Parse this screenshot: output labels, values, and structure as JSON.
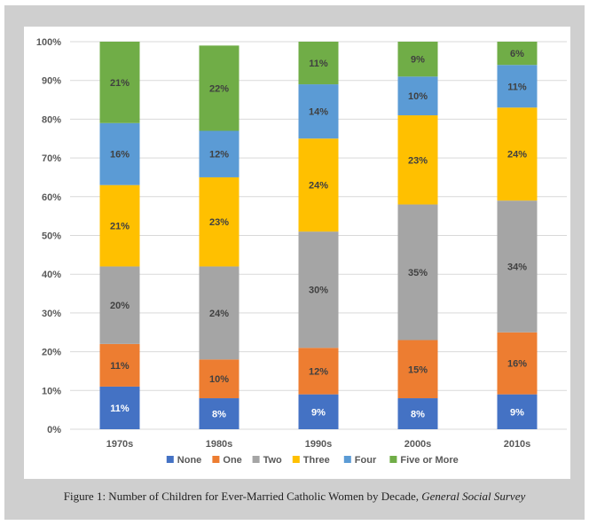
{
  "chart_data": {
    "type": "bar",
    "stacked": true,
    "categories": [
      "1970s",
      "1980s",
      "1990s",
      "2000s",
      "2010s"
    ],
    "series": [
      {
        "name": "None",
        "color": "#4472c4",
        "values": [
          11,
          8,
          9,
          8,
          9
        ],
        "labels": [
          "11%",
          "8%",
          "9%",
          "8%",
          "9%"
        ]
      },
      {
        "name": "One",
        "color": "#ed7d31",
        "values": [
          11,
          10,
          12,
          15,
          16
        ],
        "labels": [
          "11%",
          "10%",
          "12%",
          "15%",
          "16%"
        ]
      },
      {
        "name": "Two",
        "color": "#a5a5a5",
        "values": [
          20,
          24,
          30,
          35,
          34
        ],
        "labels": [
          "20%",
          "24%",
          "30%",
          "35%",
          "34%"
        ]
      },
      {
        "name": "Three",
        "color": "#ffc000",
        "values": [
          21,
          23,
          24,
          23,
          24
        ],
        "labels": [
          "21%",
          "23%",
          "24%",
          "23%",
          "24%"
        ]
      },
      {
        "name": "Four",
        "color": "#5b9bd5",
        "values": [
          16,
          12,
          14,
          10,
          11
        ],
        "labels": [
          "16%",
          "12%",
          "14%",
          "10%",
          "11%"
        ]
      },
      {
        "name": "Five or More",
        "color": "#70ad47",
        "values": [
          21,
          22,
          11,
          9,
          6
        ],
        "labels": [
          "21%",
          "22%",
          "11%",
          "9%",
          "6%"
        ]
      }
    ],
    "ylim": [
      0,
      100
    ],
    "yticks": [
      "0%",
      "10%",
      "20%",
      "30%",
      "40%",
      "50%",
      "60%",
      "70%",
      "80%",
      "90%",
      "100%"
    ],
    "grid": true,
    "legend": "bottom",
    "title": "",
    "xlabel": "",
    "ylabel": ""
  },
  "caption": {
    "text": "Figure 1: Number of Children for Ever-Married Catholic Women by Decade, ",
    "source": "General Social Survey"
  }
}
